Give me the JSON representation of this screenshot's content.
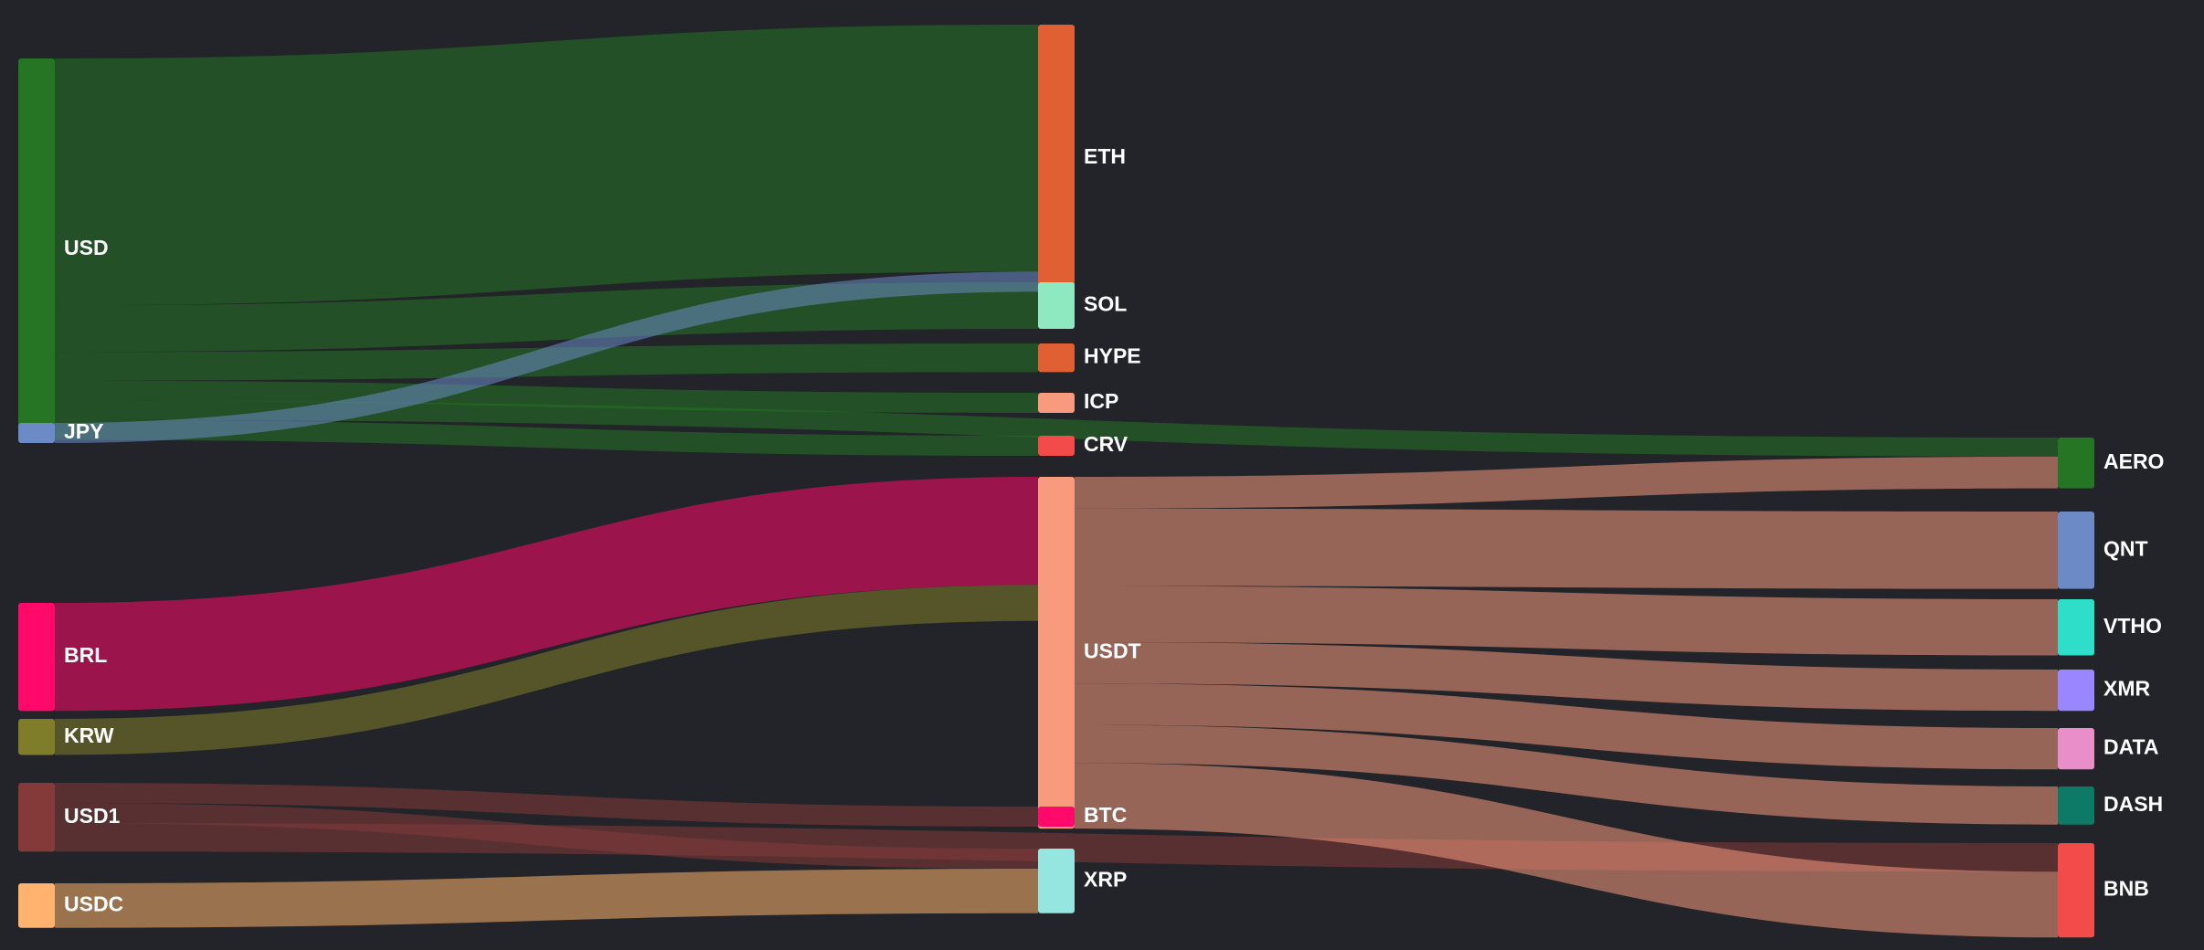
{
  "chart_data": {
    "type": "sankey",
    "title": "",
    "colors": {
      "background": "#222429",
      "USD": "#257524",
      "JPY": "#6B8AC6",
      "BRL": "#FF0A6A",
      "KRW": "#7F7D2A",
      "USD1": "#853A3A",
      "USDC": "#FFB36E",
      "ETH": "#E06033",
      "SOL": "#8EE9C1",
      "HYPE": "#E06033",
      "ICP": "#F79A7D",
      "CRV": "#F34A4A",
      "USDT": "#F79A7D",
      "BTC": "#FF0A6A",
      "XRP": "#95E6E0",
      "AERO": "#257524",
      "QNT": "#6B8AC6",
      "VTHO": "#2EDEC9",
      "XMR": "#9A86FF",
      "DATA": "#EA8EC9",
      "DASH": "#0D7A68",
      "BNB": "#F34A4A"
    },
    "nodes": [
      {
        "id": "USD",
        "label": "USD",
        "column": 0
      },
      {
        "id": "JPY",
        "label": "JPY",
        "column": 0
      },
      {
        "id": "BRL",
        "label": "BRL",
        "column": 0
      },
      {
        "id": "KRW",
        "label": "KRW",
        "column": 0
      },
      {
        "id": "USD1",
        "label": "USD1",
        "column": 0
      },
      {
        "id": "USDC",
        "label": "USDC",
        "column": 0
      },
      {
        "id": "ETH",
        "label": "ETH",
        "column": 1
      },
      {
        "id": "SOL",
        "label": "SOL",
        "column": 1
      },
      {
        "id": "HYPE",
        "label": "HYPE",
        "column": 1
      },
      {
        "id": "ICP",
        "label": "ICP",
        "column": 1
      },
      {
        "id": "CRV",
        "label": "CRV",
        "column": 1
      },
      {
        "id": "USDT",
        "label": "USDT",
        "column": 1
      },
      {
        "id": "BTC",
        "label": "BTC",
        "column": 1
      },
      {
        "id": "XRP",
        "label": "XRP",
        "column": 1
      },
      {
        "id": "AERO",
        "label": "AERO",
        "column": 2
      },
      {
        "id": "QNT",
        "label": "QNT",
        "column": 2
      },
      {
        "id": "VTHO",
        "label": "VTHO",
        "column": 2
      },
      {
        "id": "XMR",
        "label": "XMR",
        "column": 2
      },
      {
        "id": "DATA",
        "label": "DATA",
        "column": 2
      },
      {
        "id": "DASH",
        "label": "DASH",
        "column": 2
      },
      {
        "id": "BNB",
        "label": "BNB",
        "column": 2
      }
    ],
    "links": [
      {
        "source": "USD",
        "target": "ETH",
        "value": 233
      },
      {
        "source": "USD",
        "target": "SOL",
        "value": 44
      },
      {
        "source": "USD",
        "target": "HYPE",
        "value": 27
      },
      {
        "source": "USD",
        "target": "ICP",
        "value": 19
      },
      {
        "source": "USD",
        "target": "AERO",
        "value": 18
      },
      {
        "source": "USD",
        "target": "CRV",
        "value": 19
      },
      {
        "source": "JPY",
        "target": "ETH",
        "value": 19
      },
      {
        "source": "BRL",
        "target": "USDT",
        "value": 102
      },
      {
        "source": "KRW",
        "target": "USDT",
        "value": 34
      },
      {
        "source": "USD1",
        "target": "BTC",
        "value": 19
      },
      {
        "source": "USD1",
        "target": "XRP",
        "value": 19
      },
      {
        "source": "USD1",
        "target": "BNB",
        "value": 27
      },
      {
        "source": "USDC",
        "target": "XRP",
        "value": 42
      },
      {
        "source": "USDT",
        "target": "AERO",
        "value": 30
      },
      {
        "source": "USDT",
        "target": "QNT",
        "value": 73
      },
      {
        "source": "USDT",
        "target": "VTHO",
        "value": 53
      },
      {
        "source": "USDT",
        "target": "XMR",
        "value": 39
      },
      {
        "source": "USDT",
        "target": "DATA",
        "value": 39
      },
      {
        "source": "USDT",
        "target": "DASH",
        "value": 36
      },
      {
        "source": "USDT",
        "target": "BNB",
        "value": 62
      }
    ]
  }
}
